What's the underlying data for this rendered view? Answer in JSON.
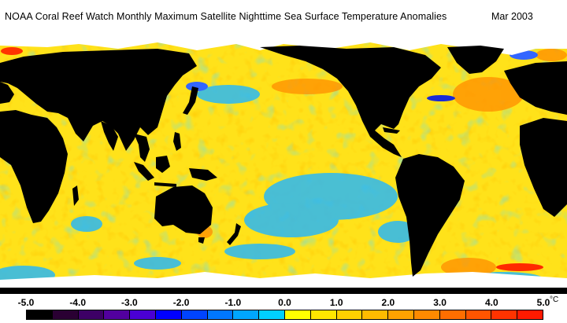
{
  "title": "NOAA Coral Reef Watch Monthly Maximum Satellite Nighttime Sea Surface Temperature Anomalies",
  "date": "Mar 2003",
  "legend": {
    "unit": "°C",
    "ticks": [
      "-5.0",
      "-4.0",
      "-3.0",
      "-2.0",
      "-1.0",
      "0.0",
      "1.0",
      "2.0",
      "3.0",
      "4.0",
      "5.0"
    ],
    "colors": [
      "#000000",
      "#2a0033",
      "#3d0066",
      "#52009e",
      "#4a00d4",
      "#0000ff",
      "#0044ff",
      "#0077ff",
      "#00a6ff",
      "#00d0ff",
      "#ffff00",
      "#ffe600",
      "#ffd000",
      "#ffbb00",
      "#ffa200",
      "#ff8a00",
      "#ff6e00",
      "#ff5500",
      "#ff3300",
      "#ff1a00"
    ]
  }
}
